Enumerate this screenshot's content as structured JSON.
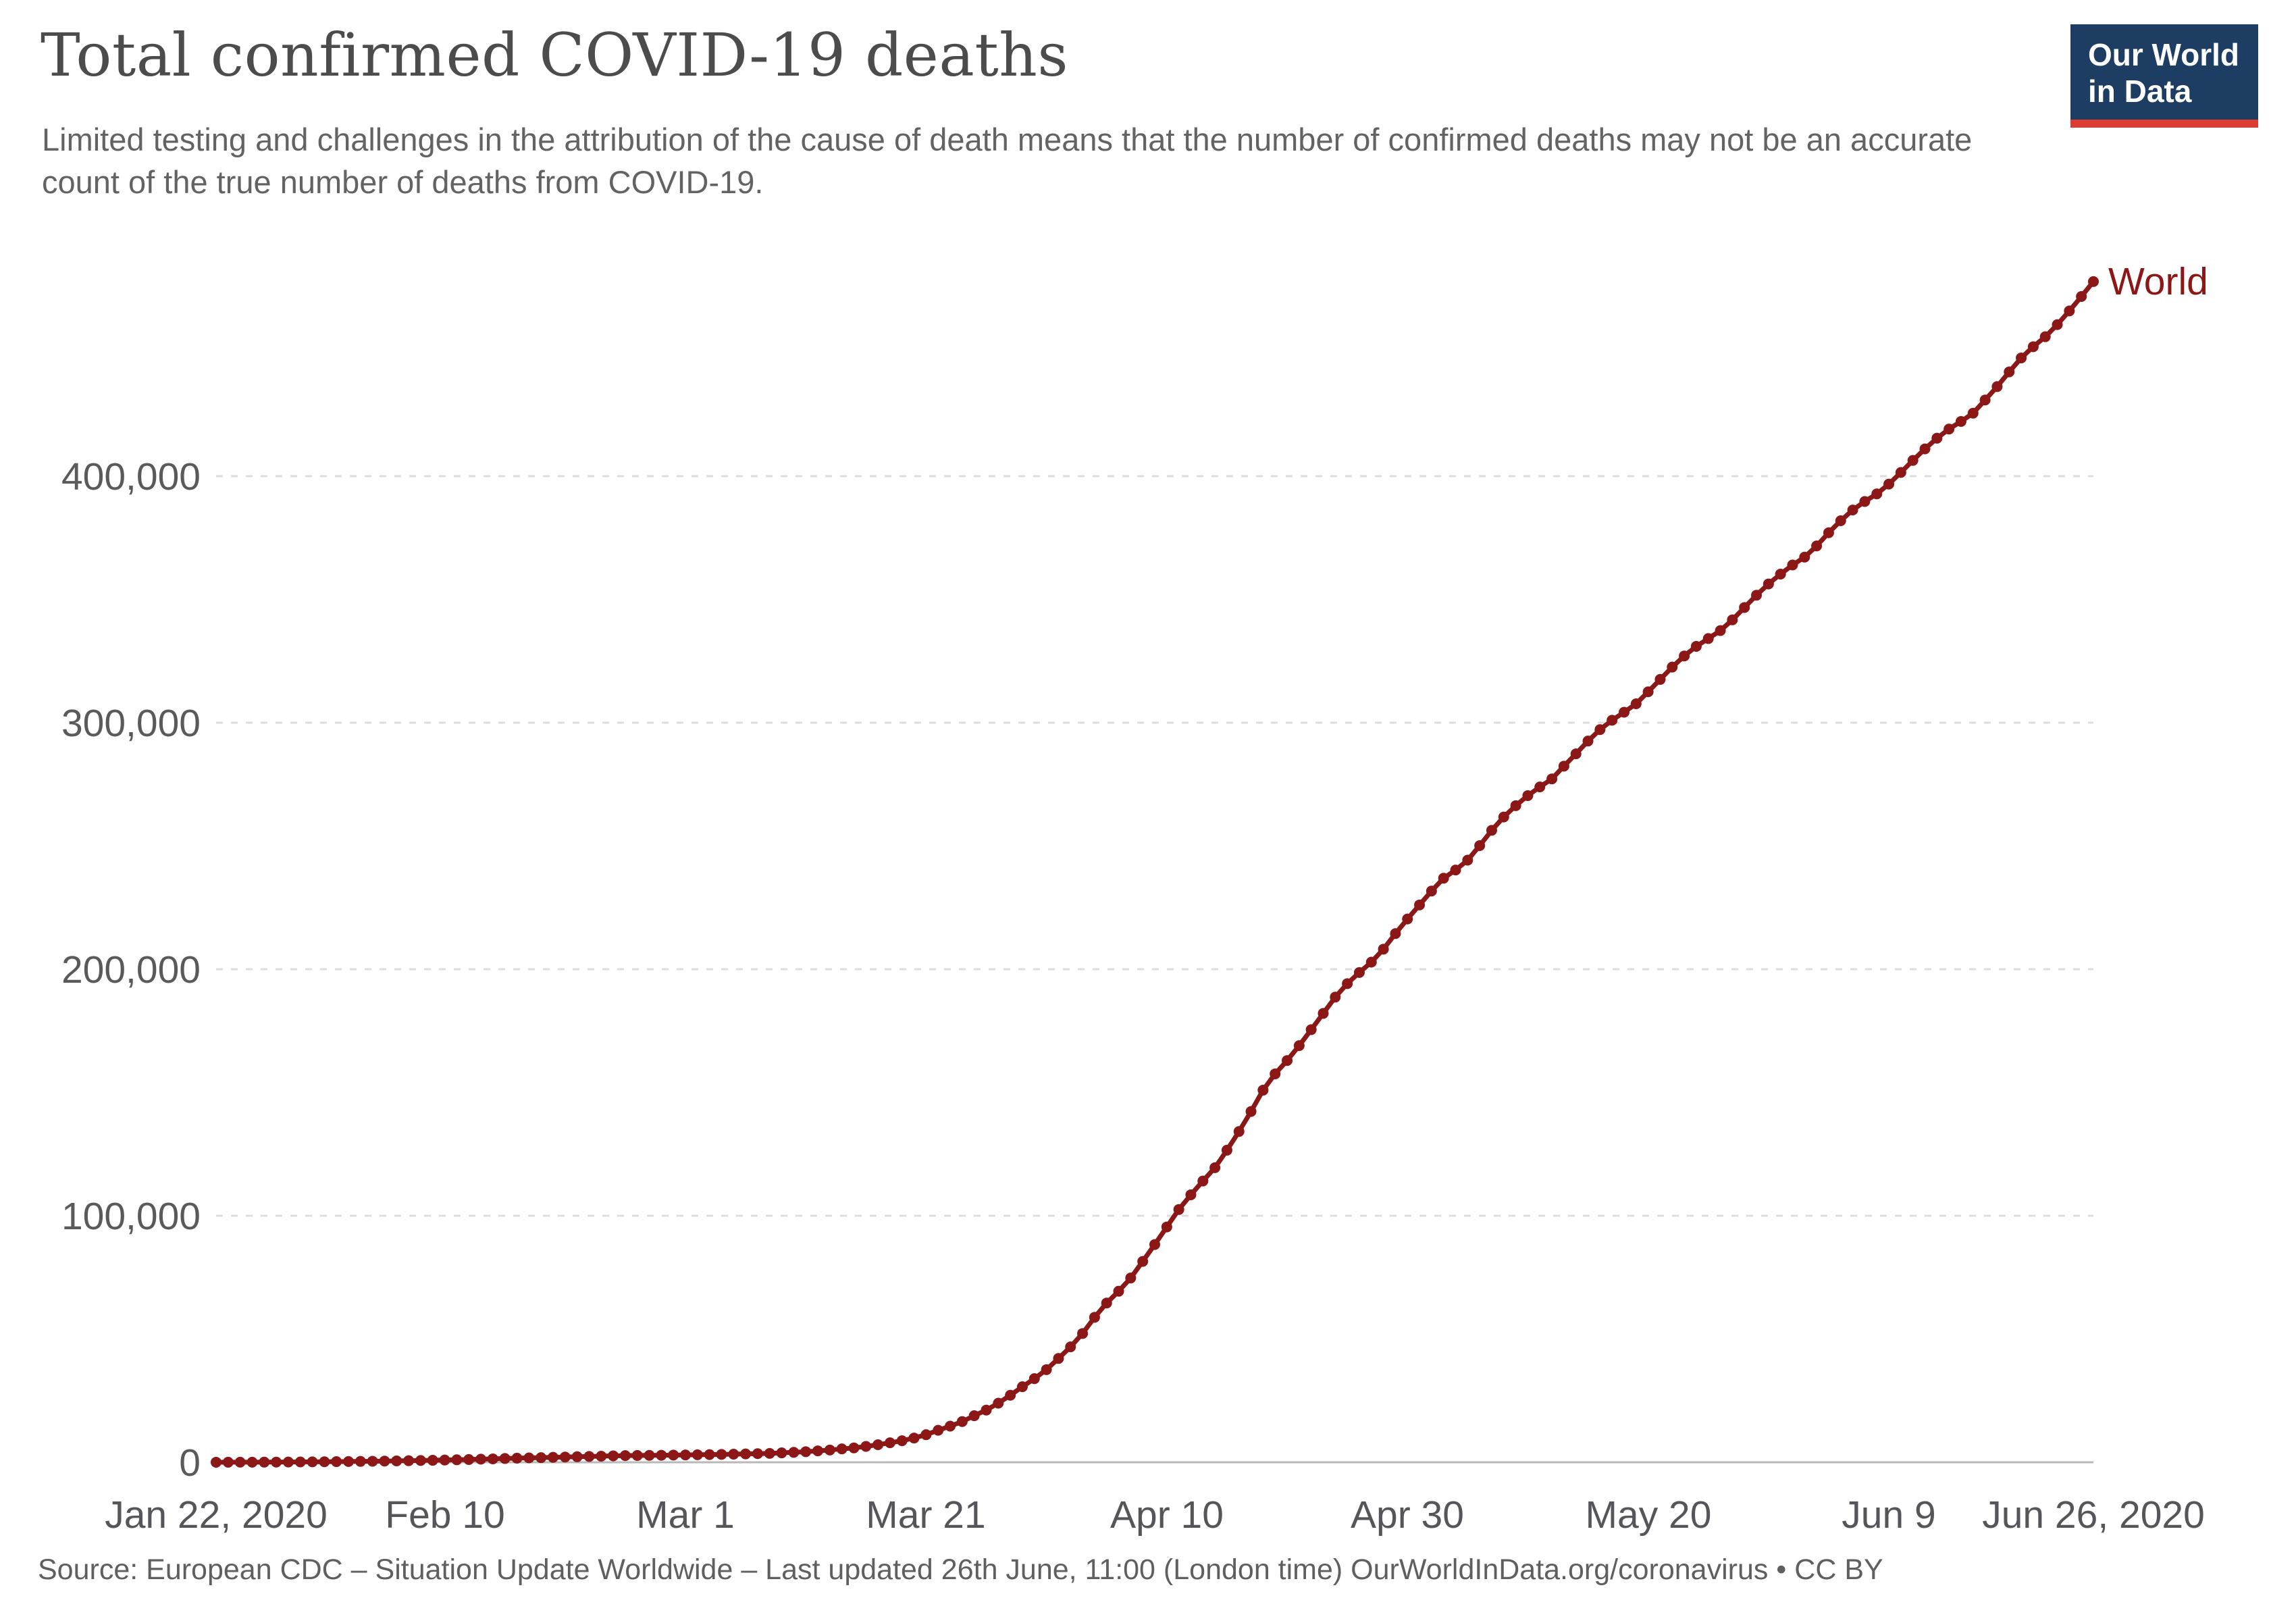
{
  "header": {
    "title": "Total confirmed COVID-19 deaths",
    "subtitle": "Limited testing and challenges in the attribution of the cause of death means that the number of confirmed deaths may not be an accurate count of the true number of deaths from COVID-19.",
    "logo": {
      "line1": "Our World",
      "line2": "in Data",
      "bg_color": "#1d3d63",
      "accent_color": "#dc3c32"
    }
  },
  "chart_data": {
    "type": "line",
    "title": "Total confirmed COVID-19 deaths",
    "grid": "horizontal-dashed",
    "legend_position": "end-of-line",
    "ylim": [
      0,
      490000
    ],
    "colors": {
      "line": "#8b1717",
      "grid": "#dddddd",
      "axis": "#b8b8b8"
    },
    "yticks": [
      {
        "value": 400000,
        "label": "400,000"
      },
      {
        "value": 300000,
        "label": "300,000"
      },
      {
        "value": 200000,
        "label": "200,000"
      },
      {
        "value": 100000,
        "label": "100,000"
      },
      {
        "value": 0,
        "label": "0"
      }
    ],
    "xticks": [
      {
        "label": "Jan 22, 2020",
        "day": 0
      },
      {
        "label": "Feb 10",
        "day": 19
      },
      {
        "label": "Mar 1",
        "day": 39
      },
      {
        "label": "Mar 21",
        "day": 59
      },
      {
        "label": "Apr 10",
        "day": 79
      },
      {
        "label": "Apr 30",
        "day": 99
      },
      {
        "label": "May 20",
        "day": 119
      },
      {
        "label": "Jun 9",
        "day": 139
      },
      {
        "label": "Jun 26, 2020",
        "day": 156
      }
    ],
    "series": [
      {
        "name": "World",
        "color": "#8b1717",
        "start_date": "2020-01-22",
        "end_date": "2020-06-26",
        "interval": "daily",
        "values": [
          17,
          18,
          26,
          42,
          56,
          81,
          106,
          132,
          170,
          213,
          259,
          304,
          362,
          426,
          492,
          565,
          638,
          724,
          813,
          910,
          1018,
          1115,
          1261,
          1383,
          1526,
          1669,
          1775,
          1873,
          2009,
          2126,
          2247,
          2360,
          2460,
          2618,
          2699,
          2763,
          2800,
          2858,
          2923,
          2977,
          3050,
          3117,
          3202,
          3286,
          3387,
          3494,
          3599,
          3827,
          4026,
          4296,
          4634,
          4981,
          5429,
          5833,
          6440,
          7126,
          7905,
          8733,
          9840,
          11184,
          12973,
          14651,
          16513,
          18894,
          21181,
          23970,
          27198,
          30652,
          33925,
          37582,
          42107,
          46809,
          52239,
          58787,
          64606,
          69374,
          74744,
          81478,
          88338,
          95455,
          102525,
          108503,
          114091,
          119482,
          126597,
          134177,
          142299,
          150948,
          157544,
          162956,
          169006,
          175490,
          182076,
          188682,
          194153,
          198668,
          202881,
          208131,
          214444,
          220381,
          226078,
          231722,
          236902,
          240236,
          244239,
          250134,
          256330,
          261747,
          266346,
          270426,
          273946,
          277190,
          282377,
          287366,
          292557,
          297197,
          300993,
          304240,
          307666,
          312537,
          317554,
          322552,
          327071,
          330970,
          334131,
          337358,
          341708,
          346724,
          351700,
          356283,
          360288,
          363966,
          367161,
          371700,
          377062,
          381911,
          386269,
          389725,
          392802,
          396775,
          401512,
          406389,
          411054,
          415399,
          419107,
          422205,
          425556,
          430895,
          436322,
          442290,
          447962,
          452514,
          456560,
          461480,
          467027,
          472870,
          478936
        ]
      }
    ]
  },
  "footer": {
    "source": "Source: European CDC – Situation Update Worldwide – Last updated 26th June, 11:00 (London time) OurWorldInData.org/coronavirus • CC BY"
  }
}
